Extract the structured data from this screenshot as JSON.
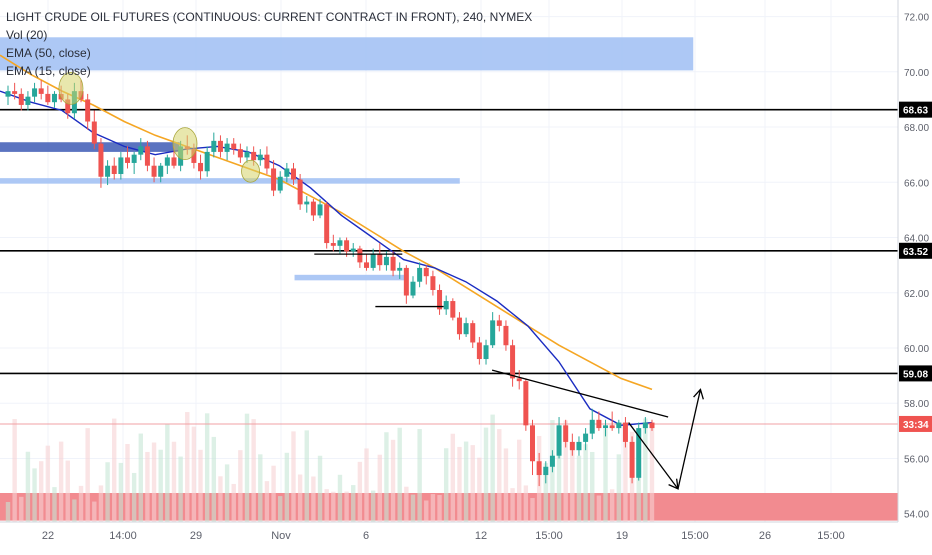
{
  "chart_data": {
    "type": "candlestick",
    "title": "LIGHT CRUDE OIL FUTURES (CONTINUOUS: CURRENT CONTRACT IN FRONT), 240, NYMEX",
    "indicators": [
      "Vol (20)",
      "EMA (50, close)",
      "EMA (15, close)"
    ],
    "ylim": [
      53.7,
      72.6
    ],
    "y_ticks": [
      54.0,
      56.0,
      58.0,
      60.0,
      62.0,
      64.0,
      66.0,
      68.0,
      70.0,
      72.0
    ],
    "y_tick_labels": [
      "54.00",
      "56.00",
      "58.00",
      "60.00",
      "62.00",
      "64.00",
      "66.00",
      "68.00",
      "70.00",
      "72.00"
    ],
    "x_tick_labels": [
      "22",
      "14:00",
      "29",
      "Nov",
      "6",
      "12",
      "15:00",
      "19",
      "15:00",
      "26",
      "15:00"
    ],
    "price_labels": [
      {
        "text": "68.63",
        "value": 68.63,
        "style": "black"
      },
      {
        "text": "63.52",
        "value": 63.52,
        "style": "black"
      },
      {
        "text": "59.08",
        "value": 59.08,
        "style": "black"
      },
      {
        "text": "33:34",
        "value": 57.25,
        "style": "red"
      }
    ],
    "horizontal_lines": [
      68.63,
      63.52,
      59.08
    ],
    "current_price": 57.25,
    "zones": [
      {
        "name": "blue-zone-top",
        "y_top": 71.25,
        "y_bottom": 70.05,
        "x_end_frac": 0.772,
        "color": "#a4c2f4"
      },
      {
        "name": "navy-zone",
        "y_top": 67.45,
        "y_bottom": 67.1,
        "x_end_frac": 0.2,
        "color": "#3d5bb5"
      },
      {
        "name": "light-blue-zone",
        "y_top": 66.15,
        "y_bottom": 65.95,
        "x_end_frac": 0.512,
        "color": "#a4c2f4"
      },
      {
        "name": "small-zone",
        "y_top": 62.65,
        "y_bottom": 62.45,
        "x_start_frac": 0.328,
        "x_end_frac": 0.455,
        "color": "#a4c2f4"
      },
      {
        "name": "red-zone",
        "y_top": 54.75,
        "y_bottom": 53.75,
        "color": "#f28b90"
      }
    ],
    "ema50": [
      70.6,
      69.9,
      69.3,
      68.8,
      68.2,
      67.7,
      67.3,
      66.9,
      66.5,
      66.1,
      65.5,
      64.9,
      64.2,
      63.5,
      62.9,
      62.2,
      61.5,
      60.8,
      60.1,
      59.5,
      58.9,
      58.5
    ],
    "ema15": [
      69.3,
      68.9,
      68.6,
      67.8,
      67.3,
      67.0,
      67.2,
      67.3,
      67.1,
      66.6,
      65.8,
      64.8,
      64.0,
      63.2,
      62.9,
      62.4,
      61.7,
      60.8,
      59.5,
      57.8,
      57.2,
      57.3
    ],
    "candles": [
      [
        69.1,
        69.5,
        68.8,
        69.3
      ],
      [
        69.3,
        69.6,
        69.0,
        69.2
      ],
      [
        69.2,
        69.4,
        68.6,
        68.8
      ],
      [
        68.8,
        69.3,
        68.6,
        69.1
      ],
      [
        69.1,
        69.6,
        68.9,
        69.4
      ],
      [
        69.4,
        69.7,
        69.0,
        69.2
      ],
      [
        69.2,
        69.5,
        68.8,
        68.9
      ],
      [
        68.9,
        69.3,
        68.7,
        69.2
      ],
      [
        69.2,
        69.5,
        68.9,
        69.0
      ],
      [
        69.0,
        69.2,
        68.3,
        68.5
      ],
      [
        68.5,
        69.6,
        68.3,
        69.3
      ],
      [
        69.3,
        69.7,
        68.9,
        69.0
      ],
      [
        69.0,
        69.2,
        67.9,
        68.2
      ],
      [
        68.2,
        68.6,
        67.2,
        67.4
      ],
      [
        67.4,
        67.6,
        65.8,
        66.2
      ],
      [
        66.2,
        66.8,
        65.9,
        66.6
      ],
      [
        66.6,
        66.9,
        66.1,
        66.3
      ],
      [
        66.3,
        67.1,
        66.1,
        66.9
      ],
      [
        66.9,
        67.3,
        66.5,
        66.7
      ],
      [
        66.7,
        67.1,
        66.3,
        67.0
      ],
      [
        67.0,
        67.6,
        66.8,
        67.3
      ],
      [
        67.3,
        67.5,
        66.4,
        66.6
      ],
      [
        66.6,
        66.9,
        66.0,
        66.2
      ],
      [
        66.2,
        66.7,
        66.0,
        66.6
      ],
      [
        66.6,
        67.0,
        66.3,
        66.9
      ],
      [
        66.9,
        67.3,
        66.5,
        66.6
      ],
      [
        66.6,
        67.5,
        66.4,
        67.3
      ],
      [
        67.3,
        67.7,
        67.0,
        67.2
      ],
      [
        67.2,
        67.4,
        66.5,
        66.7
      ],
      [
        66.7,
        67.0,
        66.1,
        66.4
      ],
      [
        66.4,
        67.3,
        66.2,
        67.1
      ],
      [
        67.1,
        67.8,
        66.9,
        67.5
      ],
      [
        67.5,
        67.7,
        66.9,
        67.1
      ],
      [
        67.1,
        67.6,
        66.8,
        67.4
      ],
      [
        67.4,
        67.6,
        67.0,
        67.2
      ],
      [
        67.2,
        67.4,
        66.7,
        66.9
      ],
      [
        66.9,
        67.3,
        66.7,
        67.1
      ],
      [
        67.1,
        67.3,
        66.6,
        66.8
      ],
      [
        66.8,
        67.2,
        66.6,
        67.0
      ],
      [
        67.0,
        67.3,
        66.3,
        66.5
      ],
      [
        66.5,
        66.8,
        65.5,
        65.7
      ],
      [
        65.7,
        66.4,
        65.6,
        66.2
      ],
      [
        66.2,
        66.7,
        66.0,
        66.5
      ],
      [
        66.5,
        66.7,
        65.9,
        66.1
      ],
      [
        66.1,
        66.3,
        65.0,
        65.2
      ],
      [
        65.2,
        65.5,
        64.9,
        65.3
      ],
      [
        65.3,
        65.4,
        64.6,
        64.8
      ],
      [
        64.8,
        65.4,
        64.7,
        65.2
      ],
      [
        65.2,
        65.3,
        63.6,
        63.8
      ],
      [
        63.8,
        64.1,
        63.5,
        63.7
      ],
      [
        63.7,
        64.0,
        63.4,
        63.9
      ],
      [
        63.9,
        64.0,
        63.3,
        63.5
      ],
      [
        63.5,
        63.8,
        63.3,
        63.6
      ],
      [
        63.6,
        63.7,
        62.9,
        63.1
      ],
      [
        63.1,
        63.4,
        62.8,
        62.9
      ],
      [
        62.9,
        63.6,
        62.8,
        63.4
      ],
      [
        63.4,
        63.8,
        62.8,
        63.0
      ],
      [
        63.0,
        63.5,
        62.8,
        63.3
      ],
      [
        63.3,
        63.5,
        62.6,
        62.8
      ],
      [
        62.8,
        63.1,
        62.5,
        62.9
      ],
      [
        62.9,
        63.0,
        61.6,
        61.9
      ],
      [
        61.9,
        62.6,
        61.8,
        62.4
      ],
      [
        62.4,
        63.1,
        62.2,
        62.9
      ],
      [
        62.9,
        63.0,
        62.3,
        62.6
      ],
      [
        62.6,
        62.8,
        61.9,
        62.1
      ],
      [
        62.1,
        62.3,
        61.2,
        61.4
      ],
      [
        61.4,
        61.9,
        61.2,
        61.7
      ],
      [
        61.7,
        61.8,
        61.0,
        61.1
      ],
      [
        61.1,
        61.3,
        60.3,
        60.5
      ],
      [
        60.5,
        61.1,
        60.4,
        60.9
      ],
      [
        60.9,
        61.0,
        60.0,
        60.2
      ],
      [
        60.2,
        60.4,
        59.4,
        59.6
      ],
      [
        59.6,
        60.3,
        59.4,
        60.1
      ],
      [
        60.1,
        61.3,
        60.0,
        61.0
      ],
      [
        61.0,
        61.2,
        60.6,
        60.8
      ],
      [
        60.8,
        61.0,
        59.9,
        60.1
      ],
      [
        60.1,
        60.3,
        58.6,
        58.9
      ],
      [
        58.9,
        59.2,
        58.5,
        58.8
      ],
      [
        58.8,
        58.9,
        57.0,
        57.2
      ],
      [
        57.2,
        57.4,
        55.4,
        55.9
      ],
      [
        55.9,
        56.2,
        55.0,
        55.4
      ],
      [
        55.4,
        55.9,
        55.1,
        55.7
      ],
      [
        55.7,
        56.3,
        55.5,
        56.1
      ],
      [
        56.1,
        57.5,
        56.0,
        57.2
      ],
      [
        57.2,
        57.4,
        56.4,
        56.6
      ],
      [
        56.6,
        56.9,
        56.1,
        56.3
      ],
      [
        56.3,
        56.8,
        56.1,
        56.6
      ],
      [
        56.6,
        57.1,
        56.3,
        56.9
      ],
      [
        56.9,
        57.8,
        56.7,
        57.4
      ],
      [
        57.4,
        57.7,
        57.0,
        57.1
      ],
      [
        57.1,
        57.4,
        56.8,
        57.2
      ],
      [
        57.2,
        57.7,
        57.0,
        57.1
      ],
      [
        57.1,
        57.4,
        56.9,
        57.3
      ],
      [
        57.3,
        57.5,
        56.4,
        56.6
      ],
      [
        56.6,
        56.8,
        55.1,
        55.3
      ],
      [
        55.3,
        57.3,
        55.2,
        57.1
      ],
      [
        57.1,
        57.5,
        56.9,
        57.3
      ],
      [
        57.3,
        57.4,
        57.0,
        57.1
      ]
    ],
    "trend_lines": [
      {
        "from": [
          0.35,
          63.4
        ],
        "to": [
          0.448,
          63.4
        ]
      },
      {
        "from": [
          0.418,
          61.5
        ],
        "to": [
          0.494,
          61.5
        ]
      },
      {
        "from": [
          0.548,
          59.2
        ],
        "to": [
          0.744,
          57.5
        ]
      },
      {
        "from": [
          0.7,
          57.3
        ],
        "to": [
          0.755,
          54.9
        ]
      },
      {
        "from": [
          0.755,
          54.9
        ],
        "to": [
          0.78,
          58.5
        ]
      }
    ],
    "highlights": [
      {
        "x_frac": 0.079,
        "y": 69.4
      },
      {
        "x_frac": 0.206,
        "y": 67.4
      },
      {
        "x_frac": 0.279,
        "y": 66.4
      }
    ]
  }
}
